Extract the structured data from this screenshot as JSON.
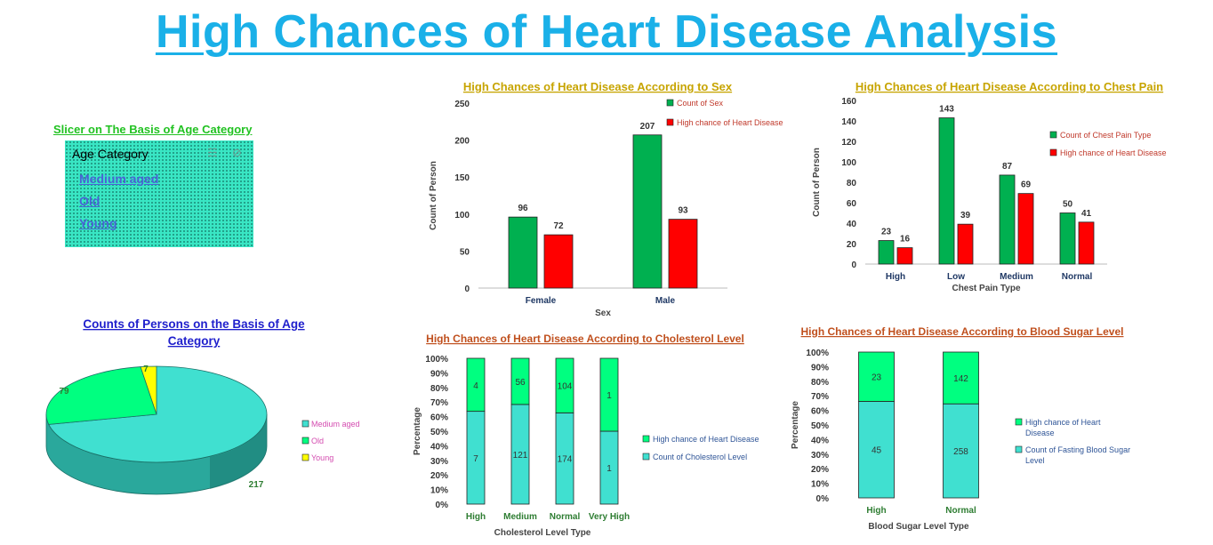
{
  "title": "High Chances of Heart Disease Analysis",
  "slicer": {
    "title": "Slicer on The Basis of Age Category",
    "header": "Age Category",
    "items": [
      "Medium aged",
      "Old",
      "Young"
    ],
    "icons": [
      "multi-select-icon",
      "clear-filter-icon"
    ]
  },
  "colors": {
    "green": "#00b050",
    "red": "#ff0000",
    "teal": "#40e0d0",
    "mint": "#00ff80",
    "yellow": "#ffff00"
  },
  "chart_data": [
    {
      "id": "sex",
      "type": "bar",
      "title": "High Chances of Heart Disease According to Sex",
      "xlabel": "Sex",
      "ylabel": "Count of Person",
      "categories": [
        "Female",
        "Male"
      ],
      "series": [
        {
          "name": "Count of Sex",
          "values": [
            96,
            207
          ]
        },
        {
          "name": "High chance of Heart Disease",
          "values": [
            72,
            93
          ]
        }
      ],
      "ylim": [
        0,
        250
      ],
      "yticks": [
        "0",
        "50",
        "100",
        "150",
        "200",
        "250"
      ],
      "legend": "top-right",
      "grid": false
    },
    {
      "id": "chest",
      "type": "bar",
      "title": "High Chances of Heart Disease According to  Chest Pain",
      "xlabel": "Chest Pain Type",
      "ylabel": "Count of Person",
      "categories": [
        "High",
        "Low",
        "Medium",
        "Normal"
      ],
      "series": [
        {
          "name": "Count of Chest Pain Type",
          "values": [
            23,
            143,
            87,
            50
          ]
        },
        {
          "name": "High chance of Heart Disease",
          "values": [
            16,
            39,
            69,
            41
          ]
        }
      ],
      "ylim": [
        0,
        160
      ],
      "yticks": [
        "0",
        "20",
        "40",
        "60",
        "80",
        "100",
        "120",
        "140",
        "160"
      ],
      "legend": "right",
      "grid": false
    },
    {
      "id": "age",
      "type": "pie",
      "title": "Counts of Persons on the Basis of Age Category",
      "labels": [
        "Medium aged",
        "Old",
        "Young"
      ],
      "values": [
        217,
        79,
        7
      ],
      "legend": "right"
    },
    {
      "id": "chol",
      "type": "bar",
      "stacked": "percent",
      "title": "High Chances of Heart Disease According to Cholesterol Level",
      "xlabel": "Cholesterol Level Type",
      "ylabel": "Percentage",
      "categories": [
        "High",
        "Medium",
        "Normal",
        "Very High"
      ],
      "series": [
        {
          "name": "Count of Cholesterol Level",
          "values": [
            7,
            121,
            174,
            1
          ]
        },
        {
          "name": "High chance of Heart Disease",
          "values": [
            4,
            56,
            104,
            1
          ]
        }
      ],
      "yticks": [
        "0%",
        "10%",
        "20%",
        "30%",
        "40%",
        "50%",
        "60%",
        "70%",
        "80%",
        "90%",
        "100%"
      ],
      "legend": "right",
      "grid": false
    },
    {
      "id": "sugar",
      "type": "bar",
      "stacked": "percent",
      "title": "High Chances of Heart Disease According to Blood Sugar Level",
      "xlabel": "Blood Sugar Level Type",
      "ylabel": "Percentage",
      "categories": [
        "High",
        "Normal"
      ],
      "series": [
        {
          "name": "Count of Fasting Blood Sugar Level",
          "values": [
            45,
            258
          ]
        },
        {
          "name": "High chance of Heart Disease",
          "values": [
            23,
            142
          ]
        }
      ],
      "yticks": [
        "0%",
        "10%",
        "20%",
        "30%",
        "40%",
        "50%",
        "60%",
        "70%",
        "80%",
        "90%",
        "100%"
      ],
      "legend": "right",
      "grid": false
    }
  ]
}
